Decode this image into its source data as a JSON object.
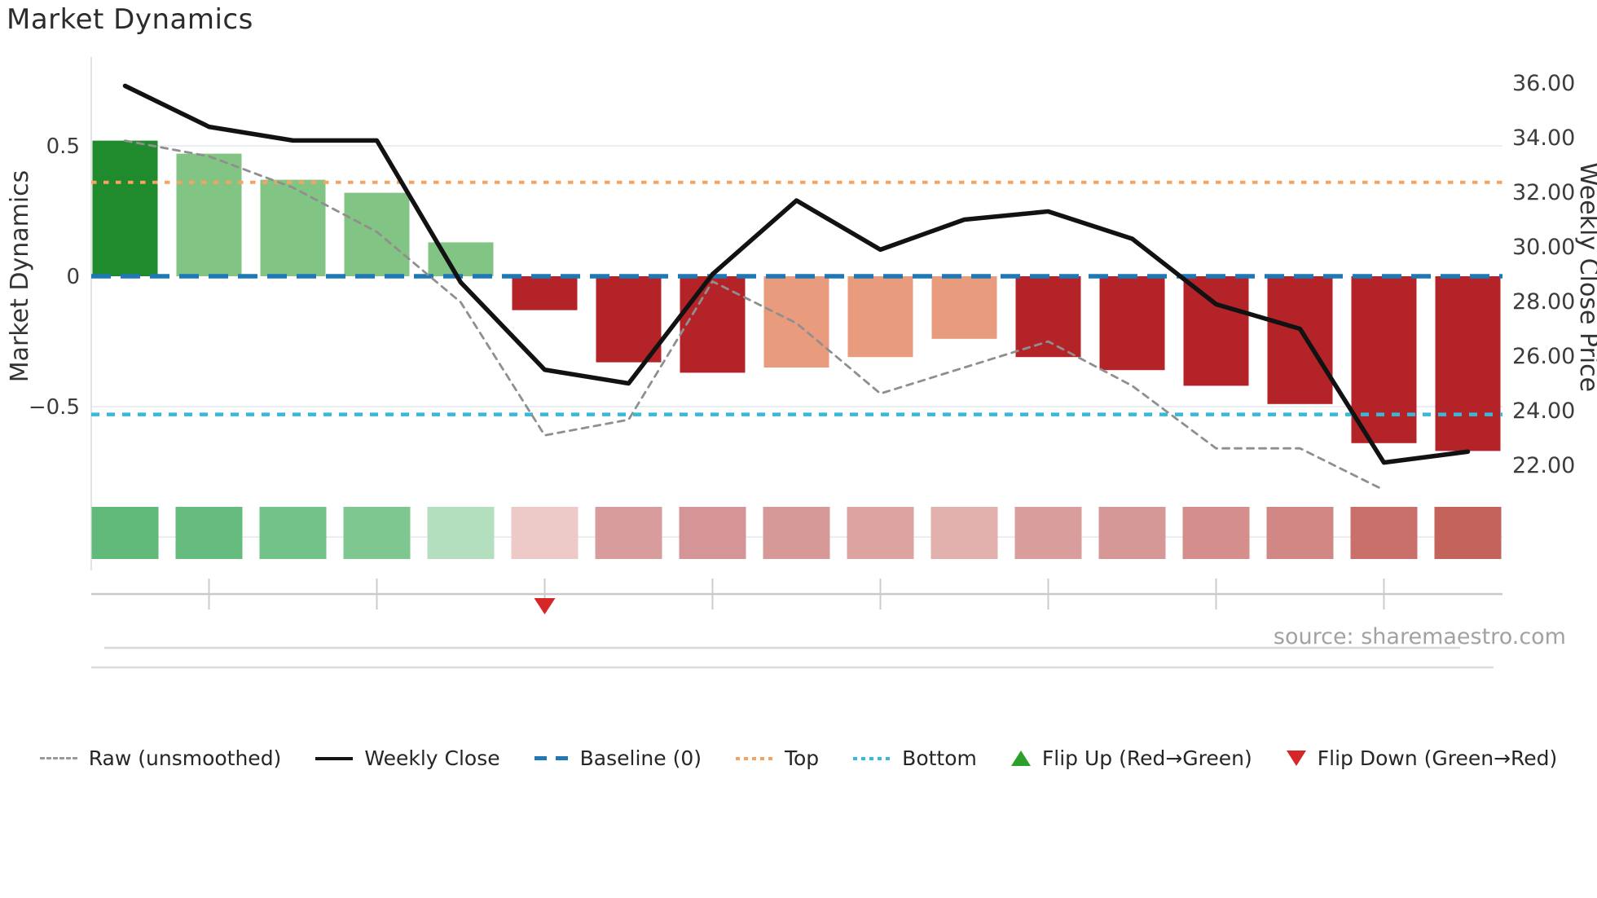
{
  "title": "Market Dynamics",
  "source_note": "source: sharemaestro.com",
  "legend": {
    "items": [
      {
        "label": "Raw (unsmoothed)"
      },
      {
        "label": "Weekly Close"
      },
      {
        "label": "Baseline (0)"
      },
      {
        "label": "Top"
      },
      {
        "label": "Bottom"
      },
      {
        "label": "Flip Up (Red→Green)"
      },
      {
        "label": "Flip Down (Green→Red)"
      }
    ]
  },
  "chart_data": {
    "type": "bar",
    "n_points": 17,
    "bars": {
      "name": "Market Dynamics score",
      "values": [
        0.52,
        0.47,
        0.37,
        0.32,
        0.13,
        -0.13,
        -0.33,
        -0.37,
        -0.35,
        -0.31,
        -0.24,
        -0.31,
        -0.36,
        -0.42,
        -0.49,
        -0.64,
        -0.67
      ],
      "colors": [
        "#1f8b2d",
        "#82c483",
        "#82c483",
        "#82c483",
        "#82c483",
        "#b42328",
        "#b42328",
        "#b42328",
        "#e89b7d",
        "#e89b7d",
        "#e89b7d",
        "#b42328",
        "#b42328",
        "#b42328",
        "#b42328",
        "#b42328",
        "#b42328"
      ]
    },
    "series": [
      {
        "name": "Raw (unsmoothed)",
        "axis": "left",
        "style": {
          "color": "#8f8f8f",
          "dash": "8 7",
          "width": 2.8
        },
        "values": [
          0.52,
          0.46,
          0.34,
          0.17,
          -0.1,
          -0.61,
          -0.55,
          -0.02,
          -0.18,
          -0.45,
          -0.35,
          -0.25,
          -0.42,
          -0.66,
          -0.66,
          -0.82,
          null
        ]
      },
      {
        "name": "Weekly Close",
        "axis": "right",
        "style": {
          "color": "#121212",
          "dash": "",
          "width": 5.5
        },
        "values": [
          35.9,
          34.4,
          33.9,
          33.9,
          28.7,
          25.5,
          25.0,
          29.0,
          31.7,
          29.9,
          31.0,
          31.3,
          30.3,
          27.9,
          27.0,
          22.1,
          22.5
        ]
      }
    ],
    "reference_lines": [
      {
        "name": "Baseline (0)",
        "axis": "left",
        "value": 0,
        "color": "#1f77b4",
        "dash": "24 12",
        "width": 5.5
      },
      {
        "name": "Top",
        "axis": "left",
        "value": 0.36,
        "color": "#f4a460",
        "dash": "6.5 8.5",
        "width": 4
      },
      {
        "name": "Bottom",
        "axis": "left",
        "value": -0.53,
        "color": "#35badb",
        "dash": "10 9",
        "width": 4.5
      }
    ],
    "flip_markers": [
      {
        "type": "down",
        "point_index": 6,
        "color": "#d62728"
      }
    ],
    "heat_strip": {
      "colors": [
        "#62ba7a",
        "#66bc7e",
        "#73c289",
        "#7fc791",
        "#b4dfbe",
        "#edcac7",
        "#d89c9c",
        "#d59596",
        "#d69997",
        "#dca3a0",
        "#e2b1ae",
        "#d99e9c",
        "#d69896",
        "#d48f8d",
        "#d18884",
        "#c9706a",
        "#c4625c"
      ]
    },
    "left_axis": {
      "label": "Market Dynamics",
      "tick_labels": [
        "0.5",
        "0",
        "−0.5"
      ],
      "tick_values": [
        0.5,
        0,
        -0.5
      ]
    },
    "right_axis": {
      "label": "Weekly Close Price",
      "tick_labels": [
        "36.00",
        "34.00",
        "32.00",
        "30.00",
        "28.00",
        "26.00",
        "24.00",
        "22.00"
      ],
      "tick_values": [
        36,
        34,
        32,
        30,
        28,
        26,
        24,
        22
      ]
    },
    "x_axis": {
      "tick_labels": [],
      "minor_tick_every": 2
    }
  }
}
